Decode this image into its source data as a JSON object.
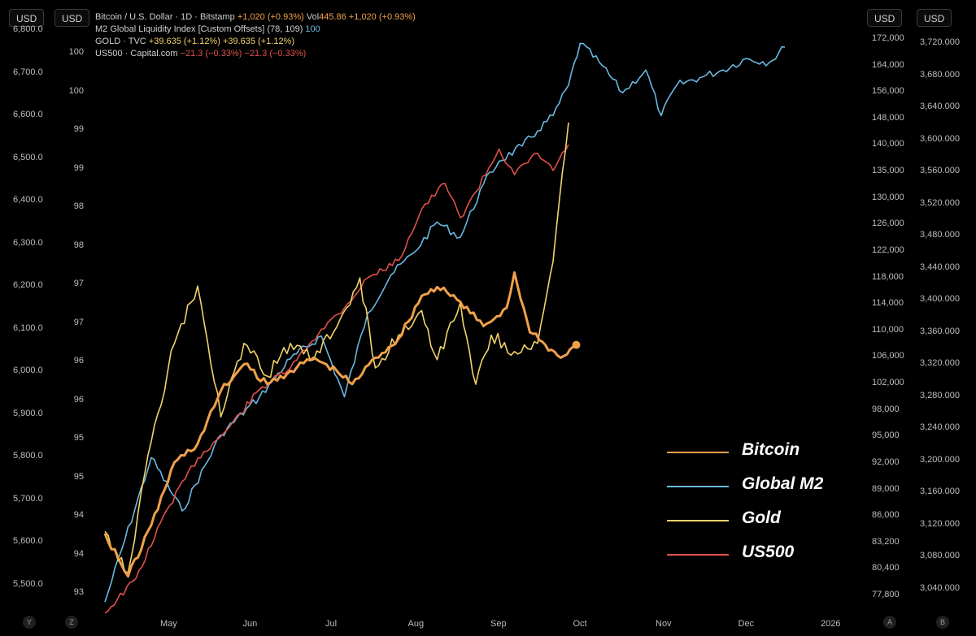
{
  "toolbar": {
    "usd_left_outer": "USD",
    "usd_left_inner": "USD",
    "usd_right_inner": "USD",
    "usd_right_outer": "USD"
  },
  "legend_header": [
    {
      "name": "Bitcoin / U.S. Dollar · 1D · Bitstamp",
      "vals": "+1,020 (+0.93%)",
      "extra_label": "Vol",
      "extra": "445.86",
      "vals2": "+1,020 (+0.93%)",
      "color": "#f0a04a"
    },
    {
      "name": "M2 Global Liquidity Index [Custom Offsets] (78, 109)",
      "vals": "100",
      "color": "#6ab8e0"
    },
    {
      "name": "GOLD · TVC",
      "vals": "+39.635 (+1.12%)",
      "vals2": "+39.635 (+1.12%)",
      "color": "#f2d36b"
    },
    {
      "name": "US500 · Capital.com",
      "vals": "−21.3 (−0.33%)",
      "vals2": "−21.3 (−0.33%)",
      "color": "#e0504a"
    }
  ],
  "bottom_corners": {
    "y": "Y",
    "z": "Z",
    "a": "A",
    "b": "B"
  },
  "colors": {
    "bitcoin": "#f0a04a",
    "m2": "#6ab8e0",
    "gold": "#f2d36b",
    "us500": "#e0504a",
    "background": "#000000"
  },
  "chart_data": {
    "type": "line",
    "x": {
      "tick_labels": [
        "May",
        "Jun",
        "Jul",
        "Aug",
        "Sep",
        "Oct",
        "Nov",
        "Dec",
        "2026"
      ]
    },
    "axes": {
      "far_left": {
        "ticks": [
          "6,800.0",
          "6,700.0",
          "6,600.0",
          "6,500.0",
          "6,400.0",
          "6,300.0",
          "6,200.0",
          "6,100.0",
          "6,000.0",
          "5,900.0",
          "5,800.0",
          "5,700.0",
          "5,600.0",
          "5,500.0"
        ],
        "series": "US500",
        "range": [
          5430,
          6810
        ]
      },
      "inner_left": {
        "ticks": [
          "100",
          "100",
          "99",
          "99",
          "98",
          "98",
          "97",
          "97",
          "96",
          "96",
          "95",
          "95",
          "94",
          "94",
          "93"
        ],
        "series": "M2 Global Liquidity Index"
      },
      "inner_right": {
        "ticks": [
          "172,000",
          "164,000",
          "156,000",
          "148,000",
          "140,000",
          "135,000",
          "130,000",
          "126,000",
          "122,000",
          "118,000",
          "114,000",
          "110,000",
          "106,000",
          "102,000",
          "98,000",
          "95,000",
          "92,000",
          "89,000",
          "86,000",
          "83,200",
          "80,400",
          "77,800"
        ],
        "series": "Bitcoin",
        "scale": "log"
      },
      "far_right": {
        "ticks": [
          "3,720.000",
          "3,680.000",
          "3,640.000",
          "3,600.000",
          "3,560.000",
          "3,520.000",
          "3,480.000",
          "3,440.000",
          "3,400.000",
          "3,360.000",
          "3,320.000",
          "3,280.000",
          "3,240.000",
          "3,200.000",
          "3,160.000",
          "3,120.000",
          "3,080.000",
          "3,040.000"
        ],
        "series": "Gold",
        "range": [
          3005,
          3730
        ]
      }
    },
    "legend": {
      "position": "bottom-right",
      "entries": [
        {
          "name": "Bitcoin",
          "color": "#f0a04a"
        },
        {
          "name": "Global M2",
          "color": "#6ab8e0"
        },
        {
          "name": "Gold",
          "color": "#f2d36b"
        },
        {
          "name": "US500",
          "color": "#e0504a"
        }
      ]
    },
    "grid": false,
    "series": [
      {
        "key": "m2",
        "width": 1.6,
        "points": [
          [
            0.02,
            93.0
          ],
          [
            0.08,
            94.9
          ],
          [
            0.12,
            94.2
          ],
          [
            0.17,
            95.2
          ],
          [
            0.22,
            95.7
          ],
          [
            0.26,
            96.2
          ],
          [
            0.3,
            96.5
          ],
          [
            0.33,
            95.7
          ],
          [
            0.36,
            96.8
          ],
          [
            0.39,
            97.3
          ],
          [
            0.42,
            97.6
          ],
          [
            0.45,
            98.0
          ],
          [
            0.48,
            97.8
          ],
          [
            0.51,
            98.5
          ],
          [
            0.53,
            98.8
          ],
          [
            0.56,
            99.0
          ],
          [
            0.58,
            99.2
          ],
          [
            0.6,
            99.4
          ],
          [
            0.62,
            99.8
          ],
          [
            0.635,
            100.35
          ],
          [
            0.66,
            100.1
          ],
          [
            0.69,
            99.7
          ],
          [
            0.72,
            100.0
          ],
          [
            0.74,
            99.4
          ],
          [
            0.76,
            99.8
          ],
          [
            0.79,
            99.9
          ],
          [
            0.82,
            100.0
          ],
          [
            0.85,
            100.15
          ],
          [
            0.88,
            100.1
          ],
          [
            0.9,
            100.3
          ]
        ]
      },
      {
        "key": "us500",
        "width": 1.6,
        "points": [
          [
            0.02,
            5440
          ],
          [
            0.06,
            5520
          ],
          [
            0.1,
            5680
          ],
          [
            0.14,
            5800
          ],
          [
            0.18,
            5870
          ],
          [
            0.22,
            5960
          ],
          [
            0.26,
            6010
          ],
          [
            0.3,
            6100
          ],
          [
            0.33,
            6150
          ],
          [
            0.36,
            6220
          ],
          [
            0.4,
            6260
          ],
          [
            0.43,
            6380
          ],
          [
            0.46,
            6440
          ],
          [
            0.48,
            6360
          ],
          [
            0.5,
            6420
          ],
          [
            0.53,
            6520
          ],
          [
            0.55,
            6460
          ],
          [
            0.58,
            6510
          ],
          [
            0.6,
            6470
          ],
          [
            0.62,
            6530
          ]
        ]
      },
      {
        "key": "gold",
        "width": 1.6,
        "points": [
          [
            0.02,
            3110
          ],
          [
            0.05,
            3060
          ],
          [
            0.08,
            3220
          ],
          [
            0.11,
            3340
          ],
          [
            0.14,
            3410
          ],
          [
            0.17,
            3250
          ],
          [
            0.2,
            3340
          ],
          [
            0.23,
            3300
          ],
          [
            0.26,
            3340
          ],
          [
            0.29,
            3320
          ],
          [
            0.32,
            3360
          ],
          [
            0.35,
            3420
          ],
          [
            0.37,
            3310
          ],
          [
            0.4,
            3350
          ],
          [
            0.43,
            3380
          ],
          [
            0.45,
            3320
          ],
          [
            0.48,
            3390
          ],
          [
            0.5,
            3290
          ],
          [
            0.52,
            3350
          ],
          [
            0.55,
            3330
          ],
          [
            0.58,
            3340
          ],
          [
            0.6,
            3440
          ],
          [
            0.62,
            3610
          ]
        ]
      },
      {
        "key": "bitcoin",
        "width": 3,
        "points": [
          [
            0.02,
            84000
          ],
          [
            0.05,
            79000
          ],
          [
            0.08,
            85000
          ],
          [
            0.11,
            93000
          ],
          [
            0.14,
            95500
          ],
          [
            0.17,
            103000
          ],
          [
            0.2,
            107000
          ],
          [
            0.23,
            104000
          ],
          [
            0.26,
            106000
          ],
          [
            0.29,
            108000
          ],
          [
            0.32,
            106000
          ],
          [
            0.34,
            104000
          ],
          [
            0.37,
            108000
          ],
          [
            0.4,
            111000
          ],
          [
            0.43,
            118000
          ],
          [
            0.45,
            119500
          ],
          [
            0.48,
            117000
          ],
          [
            0.51,
            113000
          ],
          [
            0.54,
            116000
          ],
          [
            0.55,
            122000
          ],
          [
            0.57,
            112000
          ],
          [
            0.59,
            110000
          ],
          [
            0.61,
            108000
          ],
          [
            0.63,
            110000
          ]
        ]
      }
    ]
  }
}
